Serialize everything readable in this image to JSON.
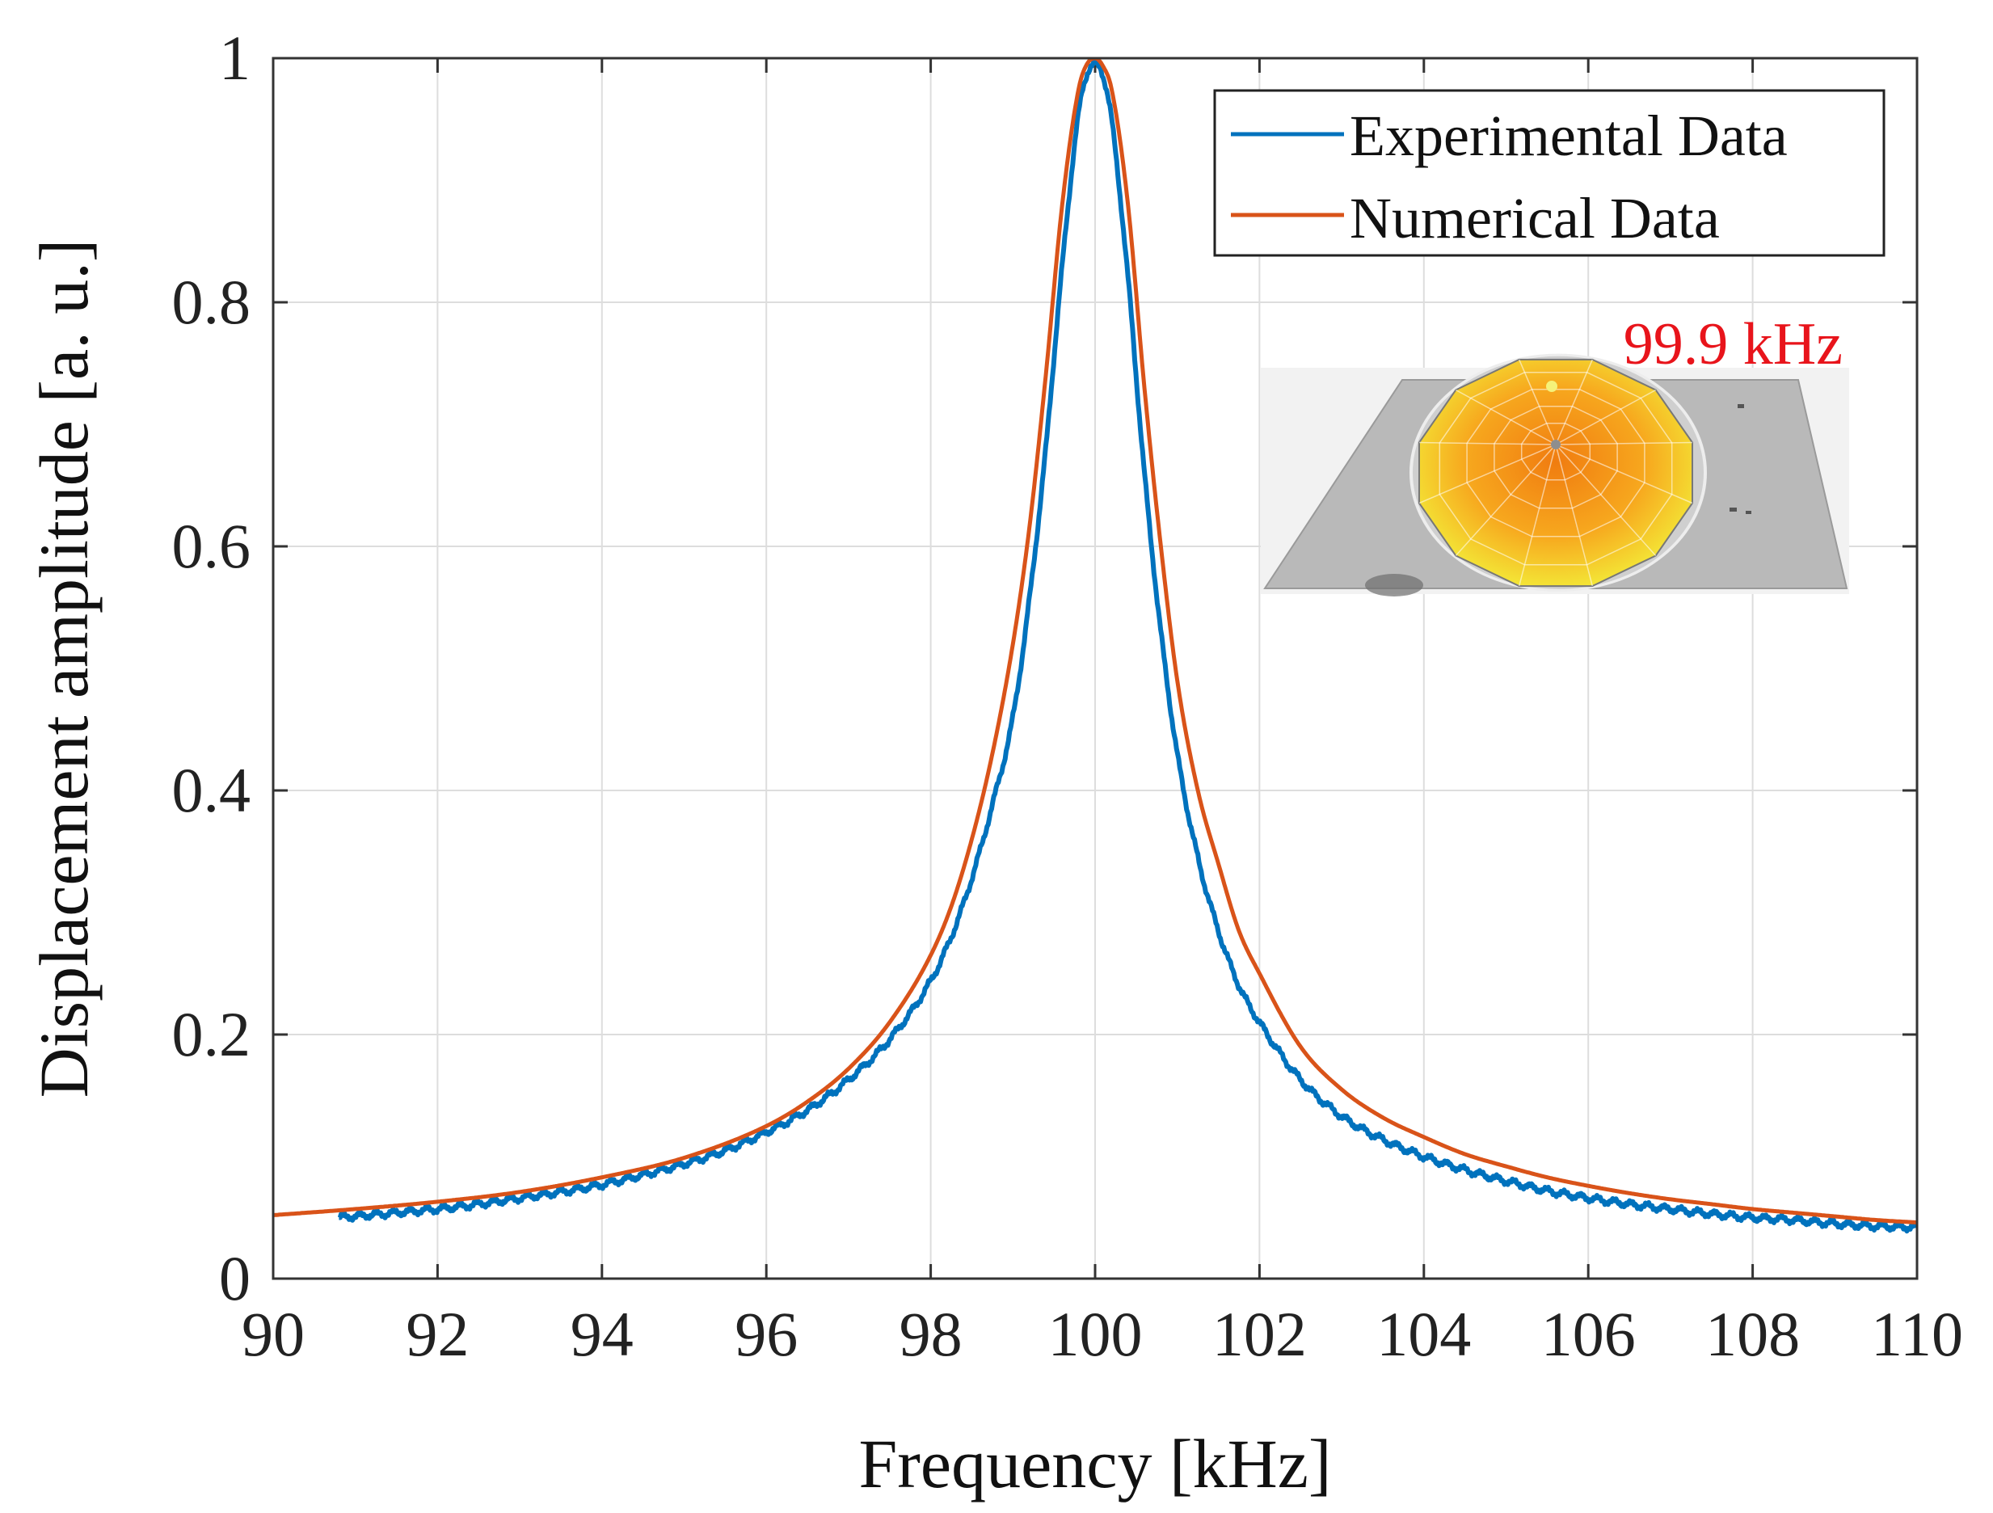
{
  "chart_data": {
    "type": "line",
    "title": "",
    "xlabel": "Frequency [kHz]",
    "ylabel": "Displacement amplitude [a. u.]",
    "xlim": [
      90,
      110
    ],
    "ylim": [
      0,
      1
    ],
    "xticks": [
      90,
      92,
      94,
      96,
      98,
      100,
      102,
      104,
      106,
      108,
      110
    ],
    "yticks": [
      0,
      0.2,
      0.4,
      0.6,
      0.8,
      1
    ],
    "ytick_labels": [
      "0",
      "0.2",
      "0.4",
      "0.6",
      "0.8",
      "1"
    ],
    "grid": true,
    "legend_position": "top-right",
    "series": [
      {
        "name": "Experimental Data",
        "color": "#0072BD",
        "x": [
          90.8,
          91.5,
          92,
          92.5,
          93,
          93.5,
          94,
          94.5,
          95,
          95.5,
          96,
          96.5,
          97,
          97.5,
          98,
          98.25,
          98.5,
          98.75,
          99,
          99.2,
          99.4,
          99.6,
          99.8,
          99.9,
          100,
          100.1,
          100.2,
          100.4,
          100.6,
          100.8,
          101,
          101.25,
          101.5,
          101.75,
          102,
          102.5,
          103,
          103.5,
          104,
          104.5,
          105,
          105.5,
          106,
          106.5,
          107,
          107.5,
          108,
          108.5,
          109,
          109.5,
          110
        ],
        "y": [
          0.05,
          0.054,
          0.057,
          0.061,
          0.066,
          0.071,
          0.077,
          0.085,
          0.094,
          0.105,
          0.12,
          0.138,
          0.163,
          0.196,
          0.244,
          0.28,
          0.328,
          0.388,
          0.46,
          0.556,
          0.68,
          0.83,
          0.955,
          0.987,
          0.995,
          0.985,
          0.95,
          0.82,
          0.66,
          0.53,
          0.43,
          0.345,
          0.285,
          0.24,
          0.21,
          0.163,
          0.133,
          0.114,
          0.1,
          0.089,
          0.08,
          0.072,
          0.066,
          0.061,
          0.057,
          0.053,
          0.05,
          0.048,
          0.045,
          0.043,
          0.042
        ]
      },
      {
        "name": "Numerical Data",
        "color": "#D95319",
        "x": [
          90,
          91,
          92,
          93,
          94,
          95,
          96,
          96.5,
          97,
          97.5,
          98,
          98.25,
          98.5,
          98.75,
          99,
          99.2,
          99.4,
          99.6,
          99.8,
          99.9,
          100,
          100.1,
          100.2,
          100.4,
          100.6,
          100.8,
          101,
          101.25,
          101.5,
          101.75,
          102,
          102.5,
          103,
          103.5,
          104,
          104.5,
          105,
          105.5,
          106,
          106.5,
          107,
          107.5,
          108,
          108.5,
          109,
          109.5,
          110
        ],
        "y": [
          0.052,
          0.057,
          0.063,
          0.071,
          0.083,
          0.099,
          0.125,
          0.145,
          0.172,
          0.21,
          0.265,
          0.305,
          0.36,
          0.43,
          0.52,
          0.615,
          0.74,
          0.88,
          0.975,
          0.995,
          1.0,
          0.993,
          0.975,
          0.88,
          0.73,
          0.6,
          0.49,
          0.4,
          0.34,
          0.285,
          0.25,
          0.19,
          0.155,
          0.132,
          0.116,
          0.102,
          0.092,
          0.083,
          0.076,
          0.07,
          0.065,
          0.061,
          0.057,
          0.054,
          0.051,
          0.048,
          0.046
        ]
      }
    ],
    "annotations": [
      "99.9 kHz"
    ]
  },
  "inset": {
    "label": "99.9 kHz",
    "label_color": "#E8141B",
    "plate_color": "#B9B9B9",
    "disc_inner_color": "#F07C10",
    "disc_outer_color": "#F3F03A"
  },
  "colors": {
    "axis": "#333333",
    "grid": "#DDDDDD"
  }
}
